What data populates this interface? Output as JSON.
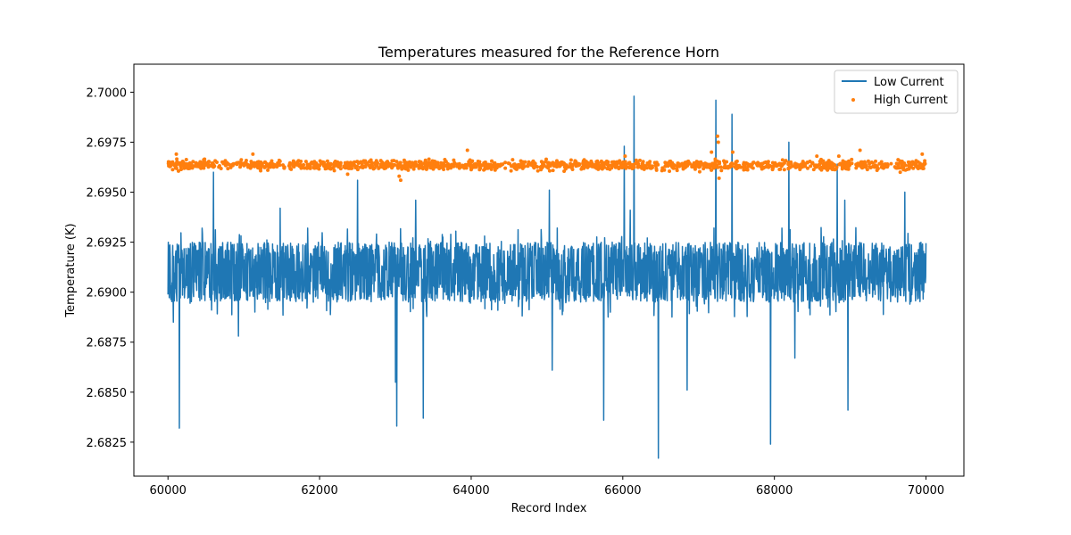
{
  "chart_data": {
    "type": "line",
    "title": "Temperatures measured for the Reference Horn",
    "xlabel": "Record Index",
    "ylabel": "Temperature (K)",
    "xlim": [
      59550,
      70500
    ],
    "ylim": [
      2.6808,
      2.7014
    ],
    "xticks": [
      60000,
      62000,
      64000,
      66000,
      68000,
      70000
    ],
    "yticks": [
      2.6825,
      2.685,
      2.6875,
      2.69,
      2.6925,
      2.695,
      2.6975,
      2.7
    ],
    "ytick_labels": [
      "2.6825",
      "2.6850",
      "2.6875",
      "2.6900",
      "2.6925",
      "2.6950",
      "2.6975",
      "2.7000"
    ],
    "legend_position": "top-right",
    "series": [
      {
        "name": "Low Current",
        "kind": "line",
        "color": "#1f77b4",
        "x_range": [
          60000,
          70000
        ],
        "band": {
          "center": 2.691,
          "low": 2.6895,
          "high": 2.6925
        },
        "spikes": [
          {
            "x": 60070,
            "y": 2.6885
          },
          {
            "x": 60150,
            "y": 2.6832
          },
          {
            "x": 60450,
            "y": 2.6932
          },
          {
            "x": 60600,
            "y": 2.696
          },
          {
            "x": 60930,
            "y": 2.6878
          },
          {
            "x": 61480,
            "y": 2.6942
          },
          {
            "x": 62500,
            "y": 2.6956
          },
          {
            "x": 63000,
            "y": 2.6855
          },
          {
            "x": 63020,
            "y": 2.6833
          },
          {
            "x": 63270,
            "y": 2.6946
          },
          {
            "x": 63370,
            "y": 2.6837
          },
          {
            "x": 65030,
            "y": 2.6951
          },
          {
            "x": 65070,
            "y": 2.6861
          },
          {
            "x": 65750,
            "y": 2.6836
          },
          {
            "x": 66020,
            "y": 2.6973
          },
          {
            "x": 66100,
            "y": 2.6941
          },
          {
            "x": 66150,
            "y": 2.6998
          },
          {
            "x": 66470,
            "y": 2.6817
          },
          {
            "x": 66850,
            "y": 2.6851
          },
          {
            "x": 67230,
            "y": 2.6996
          },
          {
            "x": 67440,
            "y": 2.6989
          },
          {
            "x": 67950,
            "y": 2.6824
          },
          {
            "x": 68190,
            "y": 2.6975
          },
          {
            "x": 68270,
            "y": 2.6867
          },
          {
            "x": 68830,
            "y": 2.6964
          },
          {
            "x": 68930,
            "y": 2.6946
          },
          {
            "x": 68970,
            "y": 2.6841
          },
          {
            "x": 69720,
            "y": 2.695
          }
        ]
      },
      {
        "name": "High Current",
        "kind": "scatter",
        "color": "#ff7f0e",
        "x_range": [
          60000,
          70000
        ],
        "band": {
          "center": 2.69635,
          "low": 2.6961,
          "high": 2.6967
        },
        "outliers": [
          {
            "x": 60110,
            "y": 2.6969
          },
          {
            "x": 61120,
            "y": 2.6969
          },
          {
            "x": 62370,
            "y": 2.6959
          },
          {
            "x": 63070,
            "y": 2.6956
          },
          {
            "x": 63050,
            "y": 2.6958
          },
          {
            "x": 63770,
            "y": 2.6966
          },
          {
            "x": 63950,
            "y": 2.6971
          },
          {
            "x": 66030,
            "y": 2.6968
          },
          {
            "x": 67170,
            "y": 2.697
          },
          {
            "x": 67250,
            "y": 2.6978
          },
          {
            "x": 67260,
            "y": 2.6975
          },
          {
            "x": 67270,
            "y": 2.6957
          },
          {
            "x": 67450,
            "y": 2.697
          },
          {
            "x": 68560,
            "y": 2.6968
          },
          {
            "x": 68850,
            "y": 2.6968
          },
          {
            "x": 69130,
            "y": 2.6971
          },
          {
            "x": 69660,
            "y": 2.696
          },
          {
            "x": 69950,
            "y": 2.6969
          }
        ]
      }
    ]
  }
}
